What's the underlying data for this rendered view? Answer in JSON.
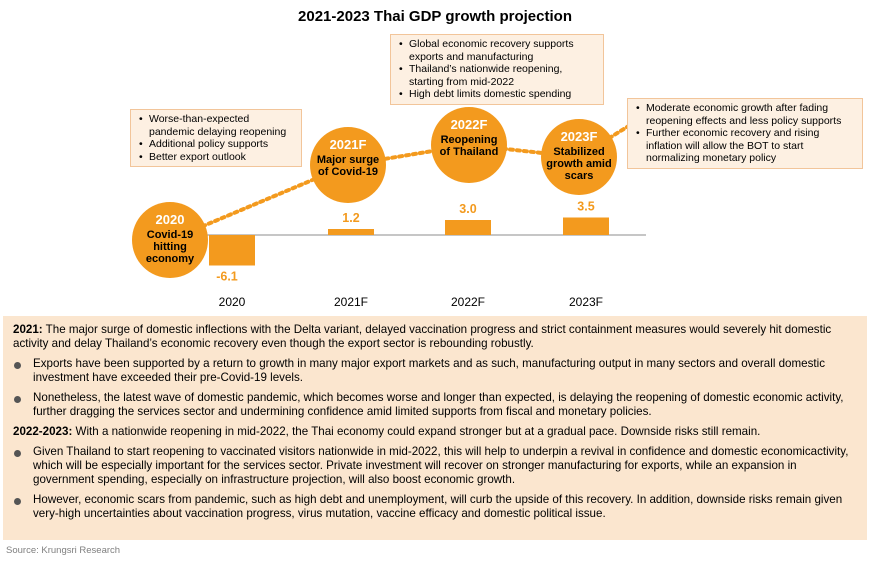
{
  "title": "2021-2023 Thai GDP growth projection",
  "chart_data": {
    "type": "bar",
    "categories": [
      "2020",
      "2021F",
      "2022F",
      "2023F"
    ],
    "values": [
      -6.1,
      1.2,
      3.0,
      3.5
    ],
    "data_labels": [
      "-6.1",
      "1.2",
      "3.0",
      "3.5"
    ],
    "title": "2021-2023 Thai GDP growth projection",
    "xlabel": "",
    "ylabel": "",
    "grid": false,
    "bar_color": "#f39a1e",
    "circles": [
      {
        "year": "2020",
        "caption": "Covid-19 hitting economy"
      },
      {
        "year": "2021F",
        "caption": "Major surge of Covid-19"
      },
      {
        "year": "2022F",
        "caption": "Reopening of Thailand"
      },
      {
        "year": "2023F",
        "caption": "Stabilized growth amid scars"
      }
    ]
  },
  "colors": {
    "accent": "#f39a1e",
    "panel": "#fbe6cf",
    "callout_bg": "#fdf0e2",
    "callout_border": "#f2c59a"
  },
  "callouts": [
    {
      "items": [
        "Worse-than-expected pandemic delaying reopening",
        "Additional policy supports",
        "Better export outlook"
      ]
    },
    {
      "items": [
        "Global economic recovery supports exports and manufacturing",
        "Thailand’s nationwide reopening, starting from mid-2022",
        "High debt limits domestic spending"
      ]
    },
    {
      "items": [
        "Moderate economic growth after fading reopening effects and less policy supports",
        "Further economic recovery and rising inflation will allow the BOT to start normalizing  monetary policy"
      ]
    }
  ],
  "panel": {
    "s1_head": "2021:",
    "s1_text": " The major surge of domestic inflections with the Delta variant, delayed vaccination progress and strict containment measures would severely hit domestic activity and delay Thailand’s economic recovery even though the export sector is rebounding robustly.",
    "s1_bullets": [
      "Exports have been supported by a return to growth in many major export markets and as such, manufacturing output in many sectors and overall domestic investment have exceeded their pre-Covid-19 levels.",
      "Nonetheless, the latest wave of domestic pandemic, which becomes worse and longer than expected, is delaying the reopening of domestic economic activity, further dragging the services sector and undermining confidence amid limited supports from fiscal and monetary policies."
    ],
    "s2_head": "2022-2023:",
    "s2_text": " With a nationwide reopening in mid-2022, the Thai economy could expand stronger but at a gradual pace. Downside risks still remain.",
    "s2_bullets": [
      "Given Thailand to start reopening to vaccinated visitors nationwide in mid-2022, this will help to underpin a revival in confidence and domestic economicactivity, which will be especially important for the services sector. Private investment will recover on stronger manufacturing for exports, while an expansion in government spending, especially on infrastructure projection, will also boost economic growth.",
      "However, economic scars from pandemic, such as high debt and unemployment, will curb the upside of this recovery. In addition, downside risks remain given very-high uncertainties about vaccination progress, virus mutation, vaccine efficacy and domestic political issue."
    ]
  },
  "source": "Source: Krungsri Research"
}
